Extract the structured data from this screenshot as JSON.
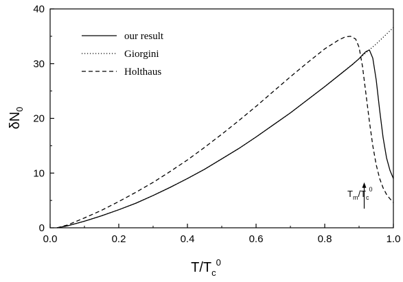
{
  "chart_data": {
    "type": "line",
    "xlabel_main": "T/T",
    "xlabel_sub": "c",
    "xlabel_sup": "0",
    "ylabel_main": "δN",
    "ylabel_sub": "0",
    "xlim": [
      0.0,
      1.0
    ],
    "ylim": [
      0,
      40
    ],
    "xticks": [
      "0.0",
      "0.2",
      "0.4",
      "0.6",
      "0.8",
      "1.0"
    ],
    "yticks": [
      "0",
      "10",
      "20",
      "30",
      "40"
    ],
    "legend_position": "top-left",
    "annotation": {
      "text_main": "T",
      "text_sub": "m",
      "text_mid": "/T",
      "text_sub2": "c",
      "text_sup": "0",
      "arrow_x": 0.915,
      "arrow_y_from": 3.5,
      "arrow_y_to": 8.3
    },
    "series": [
      {
        "name": "our result",
        "style": "solid",
        "points": [
          [
            0.02,
            0.0
          ],
          [
            0.05,
            0.35
          ],
          [
            0.1,
            1.2
          ],
          [
            0.15,
            2.2
          ],
          [
            0.2,
            3.3
          ],
          [
            0.25,
            4.5
          ],
          [
            0.3,
            5.9
          ],
          [
            0.35,
            7.4
          ],
          [
            0.4,
            9.0
          ],
          [
            0.45,
            10.7
          ],
          [
            0.5,
            12.6
          ],
          [
            0.55,
            14.5
          ],
          [
            0.6,
            16.6
          ],
          [
            0.65,
            18.8
          ],
          [
            0.7,
            21.0
          ],
          [
            0.75,
            23.4
          ],
          [
            0.8,
            25.8
          ],
          [
            0.85,
            28.3
          ],
          [
            0.88,
            29.8
          ],
          [
            0.9,
            30.9
          ],
          [
            0.91,
            31.6
          ],
          [
            0.92,
            32.2
          ],
          [
            0.93,
            32.5
          ],
          [
            0.94,
            31.0
          ],
          [
            0.95,
            27.0
          ],
          [
            0.96,
            21.5
          ],
          [
            0.97,
            16.5
          ],
          [
            0.98,
            12.8
          ],
          [
            0.99,
            10.5
          ],
          [
            1.0,
            9.0
          ]
        ]
      },
      {
        "name": "Giorgini",
        "style": "dotted",
        "points": [
          [
            0.02,
            0.0
          ],
          [
            0.05,
            0.35
          ],
          [
            0.1,
            1.2
          ],
          [
            0.15,
            2.2
          ],
          [
            0.2,
            3.3
          ],
          [
            0.25,
            4.5
          ],
          [
            0.3,
            5.9
          ],
          [
            0.35,
            7.4
          ],
          [
            0.4,
            9.0
          ],
          [
            0.45,
            10.7
          ],
          [
            0.5,
            12.6
          ],
          [
            0.55,
            14.5
          ],
          [
            0.6,
            16.6
          ],
          [
            0.65,
            18.8
          ],
          [
            0.7,
            21.0
          ],
          [
            0.75,
            23.4
          ],
          [
            0.8,
            25.8
          ],
          [
            0.85,
            28.3
          ],
          [
            0.9,
            30.9
          ],
          [
            0.95,
            33.6
          ],
          [
            1.0,
            36.6
          ]
        ]
      },
      {
        "name": "Holthaus",
        "style": "dashed",
        "points": [
          [
            0.02,
            0.0
          ],
          [
            0.05,
            0.5
          ],
          [
            0.1,
            1.8
          ],
          [
            0.15,
            3.2
          ],
          [
            0.2,
            4.8
          ],
          [
            0.25,
            6.5
          ],
          [
            0.3,
            8.3
          ],
          [
            0.35,
            10.3
          ],
          [
            0.4,
            12.4
          ],
          [
            0.45,
            14.7
          ],
          [
            0.5,
            17.1
          ],
          [
            0.55,
            19.6
          ],
          [
            0.6,
            22.2
          ],
          [
            0.65,
            24.9
          ],
          [
            0.7,
            27.6
          ],
          [
            0.75,
            30.2
          ],
          [
            0.8,
            32.7
          ],
          [
            0.84,
            34.3
          ],
          [
            0.86,
            34.9
          ],
          [
            0.875,
            35.0
          ],
          [
            0.89,
            34.5
          ],
          [
            0.9,
            33.0
          ],
          [
            0.91,
            29.5
          ],
          [
            0.92,
            24.5
          ],
          [
            0.93,
            19.5
          ],
          [
            0.94,
            15.0
          ],
          [
            0.95,
            11.5
          ],
          [
            0.96,
            9.0
          ],
          [
            0.97,
            7.3
          ],
          [
            0.98,
            6.1
          ],
          [
            0.99,
            5.3
          ],
          [
            1.0,
            4.6
          ]
        ]
      }
    ]
  }
}
